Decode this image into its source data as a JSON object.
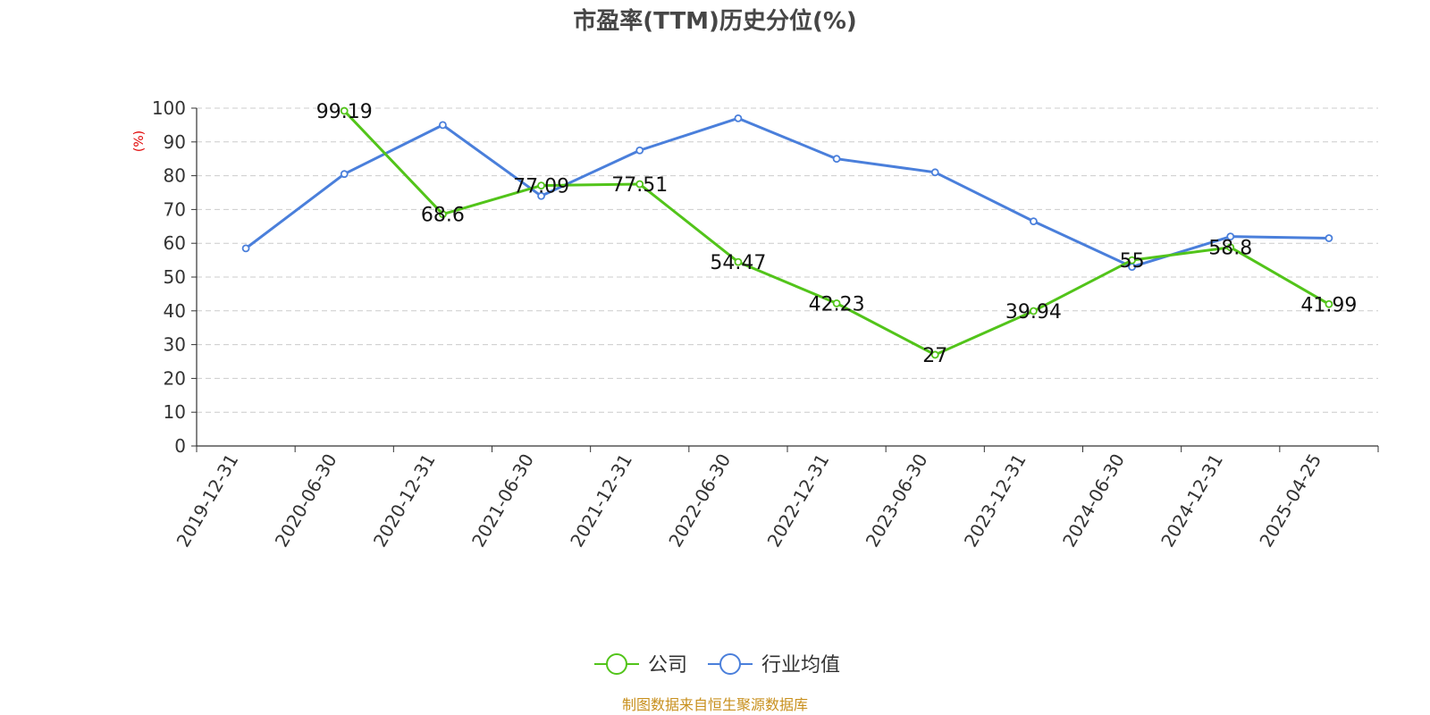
{
  "chart_data": {
    "type": "line",
    "title": "市盈率(TTM)历史分位(%)",
    "ylabel": "(%)",
    "xlabel": "",
    "ylim": [
      0,
      100
    ],
    "yticks": [
      0,
      10,
      20,
      30,
      40,
      50,
      60,
      70,
      80,
      90,
      100
    ],
    "categories": [
      "2019-12-31",
      "2020-06-30",
      "2020-12-31",
      "2021-06-30",
      "2021-12-31",
      "2022-06-30",
      "2022-12-31",
      "2023-06-30",
      "2023-12-31",
      "2024-06-30",
      "2024-12-31",
      "2025-04-25"
    ],
    "grid": true,
    "legend_position": "bottom",
    "series": [
      {
        "name": "公司",
        "color": "#52c41a",
        "values": [
          null,
          99.19,
          68.6,
          77.09,
          77.51,
          54.47,
          42.23,
          27,
          39.94,
          55,
          58.8,
          41.99
        ],
        "labels": [
          "",
          "99.19",
          "68.6",
          "77.09",
          "77.51",
          "54.47",
          "42.23",
          "27",
          "39.94",
          "55",
          "58.8",
          "41.99"
        ]
      },
      {
        "name": "行业均值",
        "color": "#4a7fdb",
        "values": [
          58.5,
          80.5,
          95,
          74,
          87.5,
          97,
          85,
          81,
          66.5,
          53,
          62,
          61.5
        ]
      }
    ]
  },
  "source": "制图数据来自恒生聚源数据库"
}
